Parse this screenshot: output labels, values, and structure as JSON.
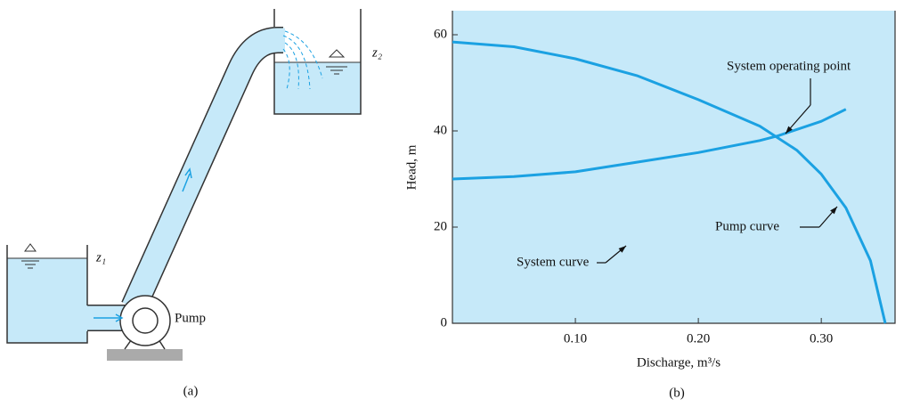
{
  "chart_data": {
    "type": "line",
    "caption": "(b)",
    "xlabel": "Discharge, m³/s",
    "ylabel": "Head, m",
    "xlim": [
      0,
      0.36
    ],
    "ylim": [
      0,
      65
    ],
    "xticks": [
      {
        "value": 0.1,
        "label": "0.10"
      },
      {
        "value": 0.2,
        "label": "0.20"
      },
      {
        "value": 0.3,
        "label": "0.30"
      }
    ],
    "yticks": [
      0,
      20,
      40,
      60
    ],
    "background": "#c6e9f9",
    "series": [
      {
        "name": "Pump curve",
        "color": "#1ba1e2",
        "x": [
          0,
          0.05,
          0.1,
          0.15,
          0.2,
          0.25,
          0.28,
          0.3,
          0.32,
          0.34,
          0.352
        ],
        "values": [
          58.5,
          57.5,
          55,
          51.5,
          46.5,
          41,
          36,
          31,
          24,
          13,
          0
        ]
      },
      {
        "name": "System curve",
        "color": "#1ba1e2",
        "x": [
          0,
          0.05,
          0.1,
          0.15,
          0.2,
          0.25,
          0.265,
          0.3,
          0.32
        ],
        "values": [
          30,
          30.5,
          31.5,
          33.5,
          35.5,
          38,
          39,
          42,
          44.5
        ]
      }
    ],
    "annotations": [
      "System operating point"
    ]
  },
  "diagram": {
    "caption": "(a)",
    "labels": [
      "z₁",
      "z₂",
      "Pump"
    ]
  }
}
